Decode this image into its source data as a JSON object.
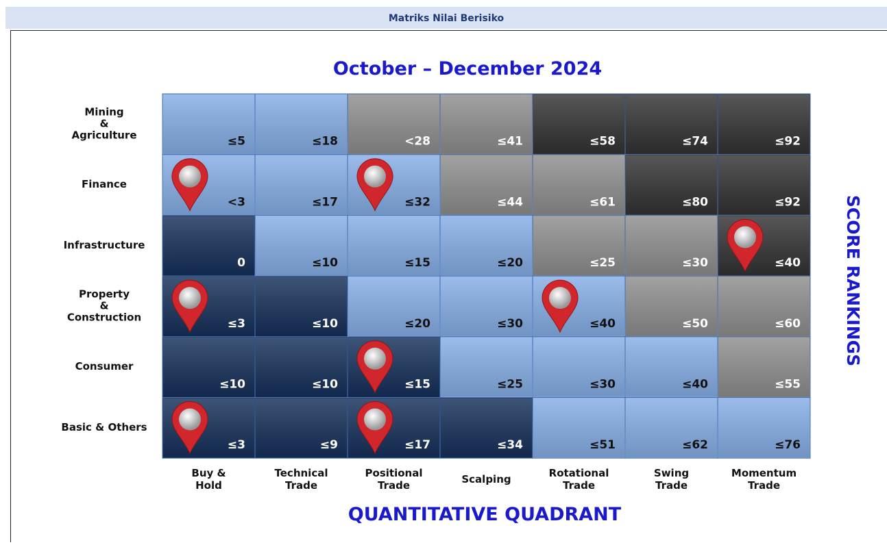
{
  "header": {
    "title": "Matriks Nilai Berisiko"
  },
  "matrix": {
    "title": "October – December 2024",
    "x_axis_title": "QUANTITATIVE QUADRANT",
    "y_axis_title": "SCORE RANKINGS",
    "columns": [
      "Buy &\nHold",
      "Technical\nTrade",
      "Positional\nTrade",
      "Scalping",
      "Rotational\nTrade",
      "Swing\nTrade",
      "Momentum\nTrade"
    ],
    "rows": [
      {
        "label": "Mining\n&\nAgriculture",
        "cells": [
          {
            "text": "≤5",
            "color": "#86aee6",
            "pin": false
          },
          {
            "text": "≤18",
            "color": "#86aee6",
            "pin": false
          },
          {
            "text": "<28",
            "color": "#8e8e8e",
            "pin": false
          },
          {
            "text": "≤41",
            "color": "#8e8e8e",
            "pin": false
          },
          {
            "text": "≤58",
            "color": "#333333",
            "pin": false
          },
          {
            "text": "≤74",
            "color": "#333333",
            "pin": false
          },
          {
            "text": "≤92",
            "color": "#333333",
            "pin": false
          }
        ]
      },
      {
        "label": "Finance",
        "cells": [
          {
            "text": "<3",
            "color": "#86aee6",
            "pin": true
          },
          {
            "text": "≤17",
            "color": "#86aee6",
            "pin": false
          },
          {
            "text": "≤32",
            "color": "#86aee6",
            "pin": true
          },
          {
            "text": "≤44",
            "color": "#8e8e8e",
            "pin": false
          },
          {
            "text": "≤61",
            "color": "#8e8e8e",
            "pin": false
          },
          {
            "text": "≤80",
            "color": "#333333",
            "pin": false
          },
          {
            "text": "≤92",
            "color": "#333333",
            "pin": false
          }
        ]
      },
      {
        "label": "Infrastructure",
        "cells": [
          {
            "text": "0",
            "color": "#15305a",
            "pin": false
          },
          {
            "text": "≤10",
            "color": "#86aee6",
            "pin": false
          },
          {
            "text": "≤15",
            "color": "#86aee6",
            "pin": false
          },
          {
            "text": "≤20",
            "color": "#86aee6",
            "pin": false
          },
          {
            "text": "≤25",
            "color": "#8e8e8e",
            "pin": false
          },
          {
            "text": "≤30",
            "color": "#8e8e8e",
            "pin": false
          },
          {
            "text": "≤40",
            "color": "#333333",
            "pin": true
          }
        ]
      },
      {
        "label": "Property\n&\nConstruction",
        "cells": [
          {
            "text": "≤3",
            "color": "#15305a",
            "pin": true
          },
          {
            "text": "≤10",
            "color": "#15305a",
            "pin": false
          },
          {
            "text": "≤20",
            "color": "#86aee6",
            "pin": false
          },
          {
            "text": "≤30",
            "color": "#86aee6",
            "pin": false
          },
          {
            "text": "≤40",
            "color": "#86aee6",
            "pin": true
          },
          {
            "text": "≤50",
            "color": "#8e8e8e",
            "pin": false
          },
          {
            "text": "≤60",
            "color": "#8e8e8e",
            "pin": false
          }
        ]
      },
      {
        "label": "Consumer",
        "cells": [
          {
            "text": "≤10",
            "color": "#15305a",
            "pin": false
          },
          {
            "text": "≤10",
            "color": "#15305a",
            "pin": false
          },
          {
            "text": "≤15",
            "color": "#15305a",
            "pin": true
          },
          {
            "text": "≤25",
            "color": "#86aee6",
            "pin": false
          },
          {
            "text": "≤30",
            "color": "#86aee6",
            "pin": false
          },
          {
            "text": "≤40",
            "color": "#86aee6",
            "pin": false
          },
          {
            "text": "≤55",
            "color": "#8e8e8e",
            "pin": false
          }
        ]
      },
      {
        "label": "Basic & Others",
        "cells": [
          {
            "text": "≤3",
            "color": "#15305a",
            "pin": true
          },
          {
            "text": "≤9",
            "color": "#15305a",
            "pin": false
          },
          {
            "text": "≤17",
            "color": "#15305a",
            "pin": true
          },
          {
            "text": "≤34",
            "color": "#15305a",
            "pin": false
          },
          {
            "text": "≤51",
            "color": "#86aee6",
            "pin": false
          },
          {
            "text": "≤62",
            "color": "#86aee6",
            "pin": false
          },
          {
            "text": "≤76",
            "color": "#86aee6",
            "pin": false
          }
        ]
      }
    ]
  }
}
